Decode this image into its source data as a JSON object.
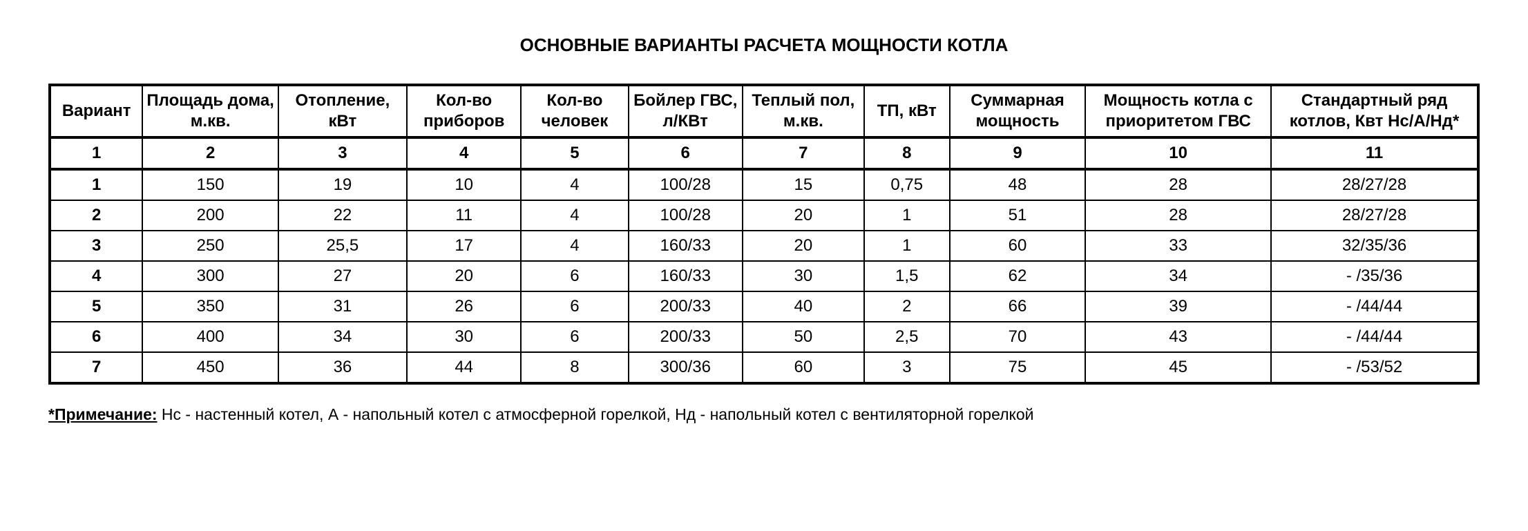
{
  "title": "ОСНОВНЫЕ ВАРИАНТЫ РАСЧЕТА МОЩНОСТИ КОТЛА",
  "table": {
    "type": "table",
    "border_color": "#000000",
    "background_color": "#ffffff",
    "text_color": "#000000",
    "header_fontsize": 24,
    "cell_fontsize": 24,
    "columns": [
      {
        "label": "Вариант",
        "width_pct": 6.5
      },
      {
        "label": "Площадь дома, м.кв.",
        "width_pct": 9.5
      },
      {
        "label": "Отопление, кВт",
        "width_pct": 9
      },
      {
        "label": "Кол-во приборов",
        "width_pct": 8
      },
      {
        "label": "Кол-во человек",
        "width_pct": 7.5
      },
      {
        "label": "Бойлер ГВС, л/КВт",
        "width_pct": 8
      },
      {
        "label": "Теплый пол, м.кв.",
        "width_pct": 8.5
      },
      {
        "label": "ТП, кВт",
        "width_pct": 6
      },
      {
        "label": "Суммарная мощность",
        "width_pct": 9.5
      },
      {
        "label": "Мощность котла с приоритетом ГВС",
        "width_pct": 13
      },
      {
        "label": "Стандартный ряд котлов, Квт Нс/А/Нд*",
        "width_pct": 14.5
      }
    ],
    "index_row": [
      "1",
      "2",
      "3",
      "4",
      "5",
      "6",
      "7",
      "8",
      "9",
      "10",
      "11"
    ],
    "rows": [
      [
        "1",
        "150",
        "19",
        "10",
        "4",
        "100/28",
        "15",
        "0,75",
        "48",
        "28",
        "28/27/28"
      ],
      [
        "2",
        "200",
        "22",
        "11",
        "4",
        "100/28",
        "20",
        "1",
        "51",
        "28",
        "28/27/28"
      ],
      [
        "3",
        "250",
        "25,5",
        "17",
        "4",
        "160/33",
        "20",
        "1",
        "60",
        "33",
        "32/35/36"
      ],
      [
        "4",
        "300",
        "27",
        "20",
        "6",
        "160/33",
        "30",
        "1,5",
        "62",
        "34",
        "- /35/36"
      ],
      [
        "5",
        "350",
        "31",
        "26",
        "6",
        "200/33",
        "40",
        "2",
        "66",
        "39",
        "- /44/44"
      ],
      [
        "6",
        "400",
        "34",
        "30",
        "6",
        "200/33",
        "50",
        "2,5",
        "70",
        "43",
        "- /44/44"
      ],
      [
        "7",
        "450",
        "36",
        "44",
        "8",
        "300/36",
        "60",
        "3",
        "75",
        "45",
        "- /53/52"
      ]
    ]
  },
  "footnote": {
    "label": "*Примечание:",
    "text": " Нс - настенный котел, А - напольный котел с атмосферной горелкой, Нд - напольный котел с вентиляторной горелкой"
  }
}
